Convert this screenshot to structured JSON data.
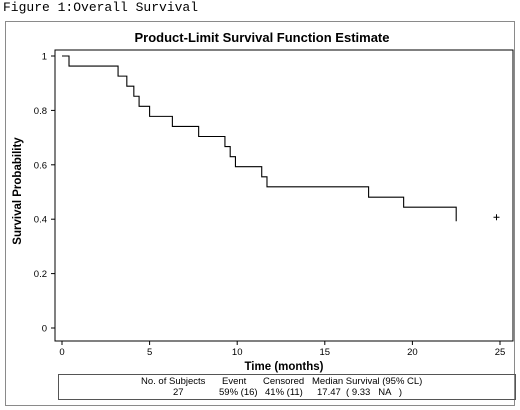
{
  "figure_caption": "Figure 1:Overall Survival",
  "stats_table": {
    "headers": [
      "No. of Subjects",
      "Event",
      "Censored",
      "Median Survival (95% CL)"
    ],
    "values": [
      "27",
      "59% (16)",
      "41% (11)",
      "17.47  ( 9.33   NA   )"
    ]
  },
  "chart_data": {
    "type": "line",
    "title": "Product-Limit Survival Function Estimate",
    "xlabel": "Time (months)",
    "ylabel": "Survival Probability",
    "xlim": [
      0,
      25
    ],
    "ylim": [
      0,
      1
    ],
    "x_ticks": [
      "0",
      "5",
      "10",
      "15",
      "20",
      "25"
    ],
    "y_ticks": [
      "0",
      "0.2",
      "0.4",
      "0.6",
      "0.8",
      "1"
    ],
    "grid": false,
    "step": true,
    "series": [
      {
        "x": [
          0,
          0.4,
          3.2,
          3.7,
          4.1,
          4.4,
          5.0,
          5.4,
          6.3,
          7.8,
          9.3,
          9.6,
          9.9,
          10.3,
          11.4,
          11.7,
          17.5,
          19.5,
          22.5
        ],
        "y": [
          1.0,
          0.963,
          0.926,
          0.889,
          0.852,
          0.815,
          0.778,
          0.778,
          0.741,
          0.704,
          0.667,
          0.63,
          0.593,
          0.593,
          0.556,
          0.519,
          0.481,
          0.444,
          0.407
        ]
      }
    ],
    "censored_marks": [
      {
        "x": 24.8,
        "y": 0.407
      }
    ]
  }
}
